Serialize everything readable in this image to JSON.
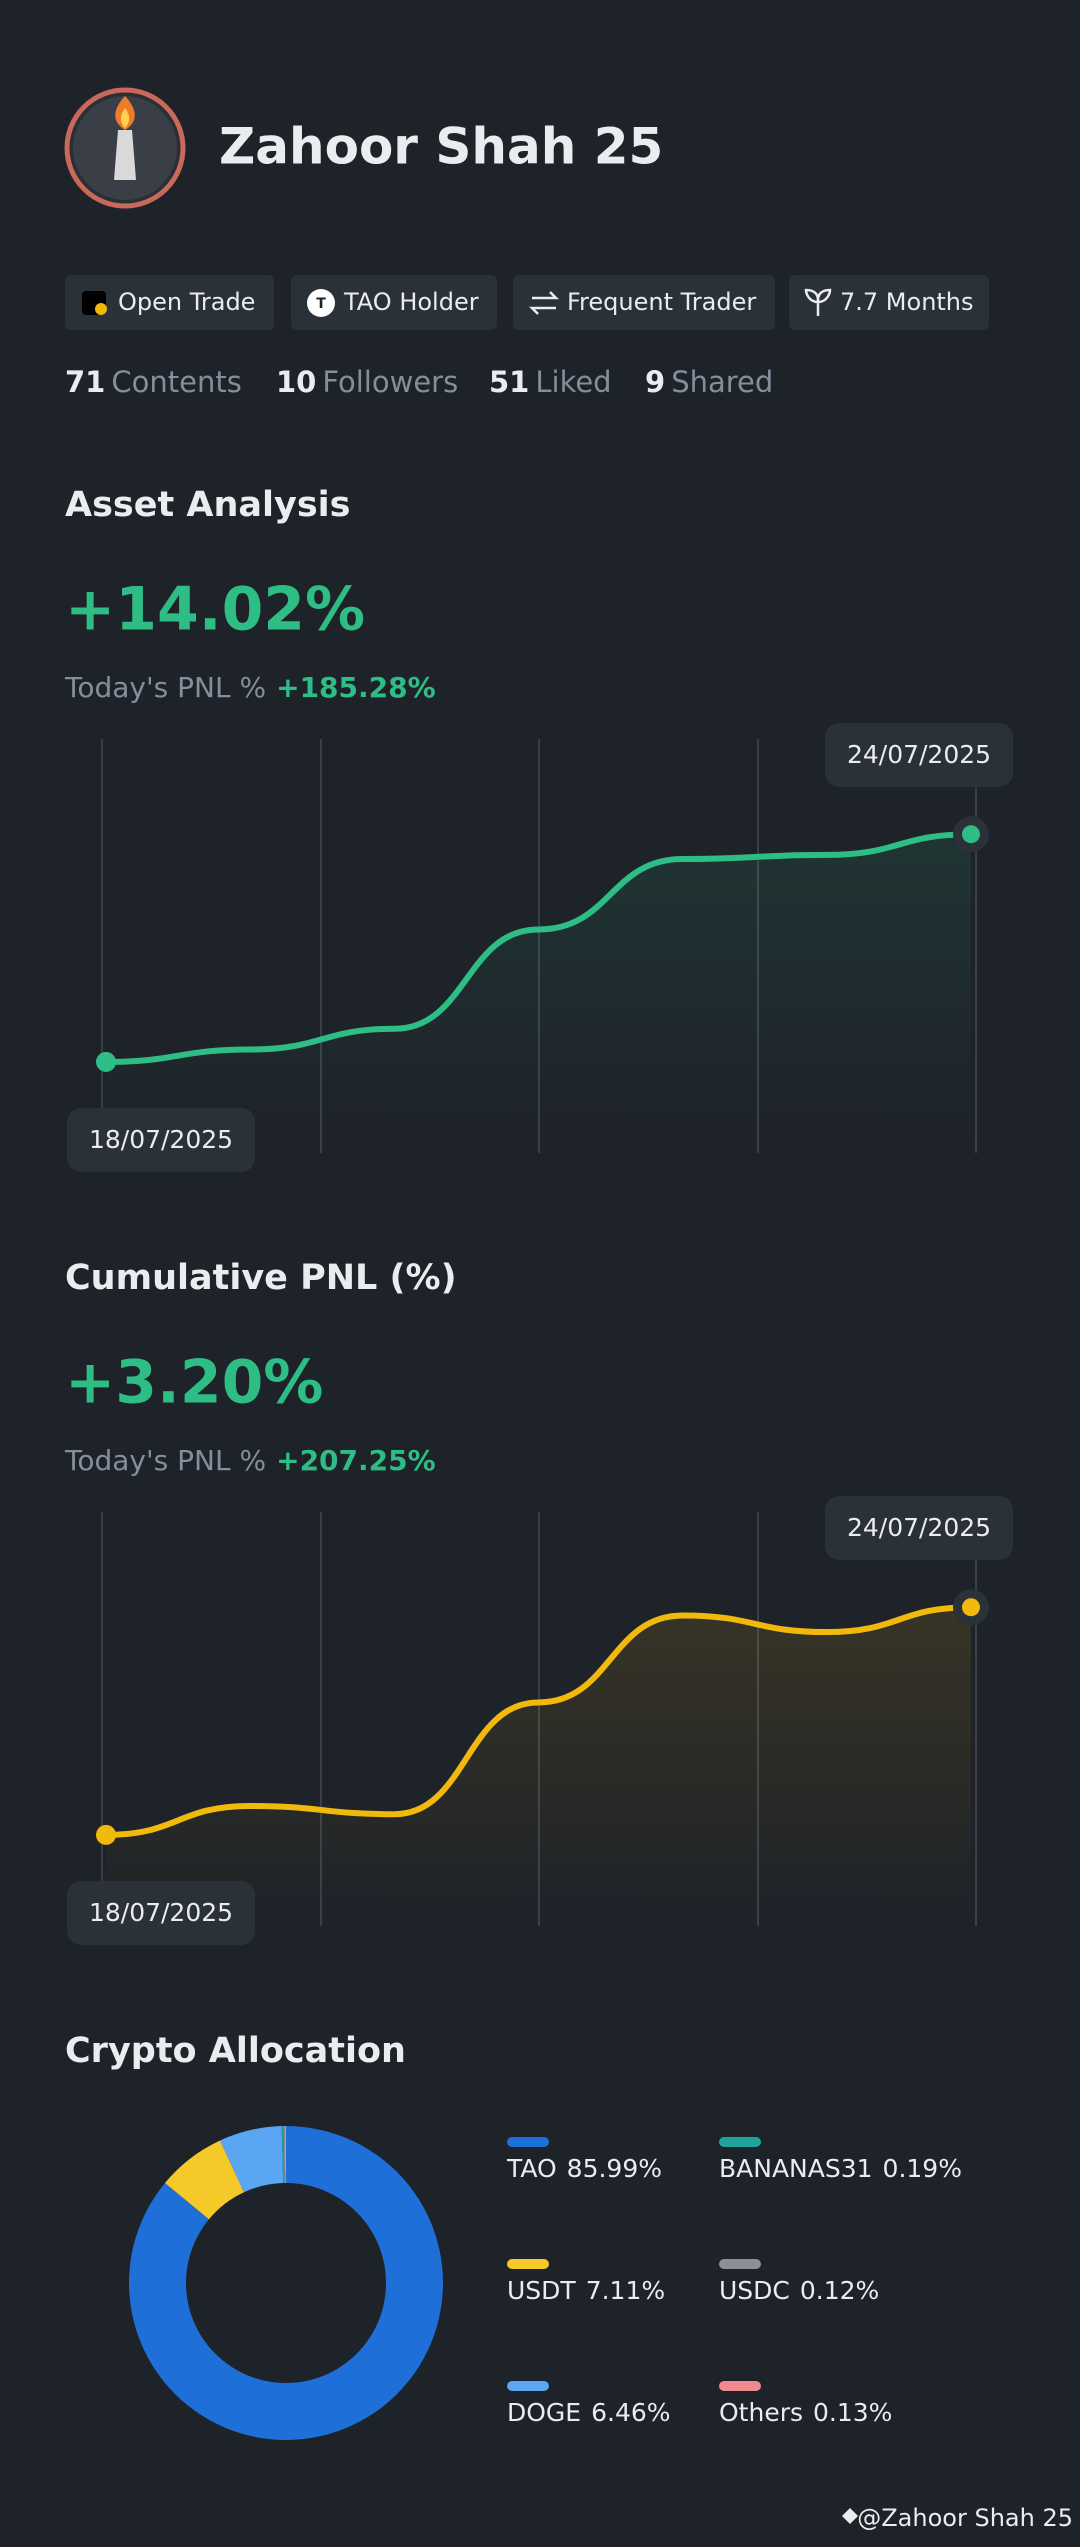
{
  "profile": {
    "name": "Zahoor Shah 25",
    "tags": [
      "Open Trade",
      "TAO Holder",
      "Frequent Trader",
      "7.7 Months"
    ],
    "stats": [
      {
        "value": 71,
        "label": "Contents"
      },
      {
        "value": 10,
        "label": "Followers"
      },
      {
        "value": 51,
        "label": "Liked"
      },
      {
        "value": 9,
        "label": "Shared"
      }
    ]
  },
  "chart_data": [
    {
      "type": "line",
      "title": "Asset Analysis",
      "headline": "+14.02%",
      "pnl_label": "Today's PNL %",
      "pnl_value": "+185.28%",
      "categories": [
        "18/07/2025",
        null,
        null,
        null,
        null,
        null,
        "24/07/2025"
      ],
      "values": [
        22,
        25,
        30,
        54,
        71,
        72,
        77
      ],
      "color": "#2ebd85",
      "ylim": [
        0,
        100
      ]
    },
    {
      "type": "line",
      "title": "Cumulative PNL (%)",
      "headline": "+3.20%",
      "pnl_label": "Today's PNL %",
      "pnl_value": "+207.25%",
      "categories": [
        "18/07/2025",
        null,
        null,
        null,
        null,
        null,
        "24/07/2025"
      ],
      "values": [
        22,
        29,
        27,
        54,
        75,
        71,
        77
      ],
      "color": "#f0b90b",
      "ylim": [
        0,
        100
      ]
    },
    {
      "type": "pie",
      "title": "Crypto Allocation",
      "categories": [
        "TAO",
        "USDT",
        "DOGE",
        "BANANAS31",
        "USDC",
        "Others"
      ],
      "values": [
        85.99,
        7.11,
        6.46,
        0.19,
        0.12,
        0.13
      ],
      "value_labels": [
        "85.99%",
        "7.11%",
        "6.46%",
        "0.19%",
        "0.12%",
        "0.13%"
      ],
      "colors": [
        "#1f6fd8",
        "#f5c928",
        "#5aa6f2",
        "#1fa39a",
        "#8a8f99",
        "#f08a8f"
      ]
    }
  ],
  "footer": "@Zahoor Shah 25"
}
